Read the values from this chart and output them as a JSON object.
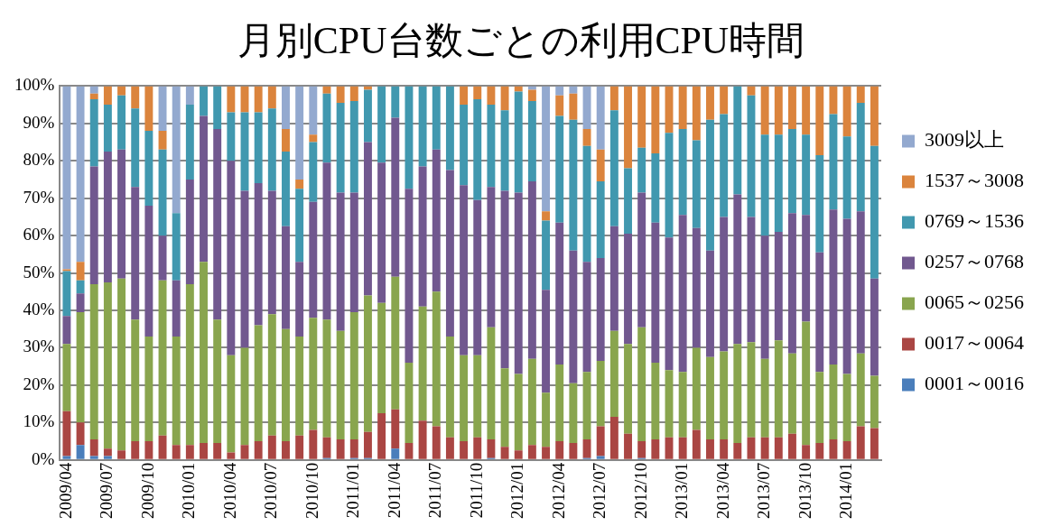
{
  "chart_data": {
    "type": "bar",
    "title": "月別CPU台数ごとの利用CPU時間",
    "stacked": true,
    "categories": [
      "2009/04",
      null,
      null,
      "2009/07",
      null,
      null,
      "2009/10",
      null,
      null,
      "2010/01",
      null,
      null,
      "2010/04",
      null,
      null,
      "2010/07",
      null,
      null,
      "2010/10",
      null,
      null,
      "2011/01",
      null,
      null,
      "2011/04",
      null,
      null,
      "2011/07",
      null,
      null,
      "2011/10",
      null,
      null,
      "2012/01",
      null,
      null,
      "2012/04",
      null,
      null,
      "2012/07",
      null,
      null,
      "2012/10",
      null,
      null,
      "2013/01",
      null,
      null,
      "2013/04",
      null,
      null,
      "2013/07",
      null,
      null,
      "2013/10",
      null,
      null,
      "2014/01",
      null,
      null
    ],
    "ylim": [
      0,
      100
    ],
    "yticks": [
      {
        "value": 0,
        "label": "0%"
      },
      {
        "value": 10,
        "label": "10%"
      },
      {
        "value": 20,
        "label": "20%"
      },
      {
        "value": 30,
        "label": "30%"
      },
      {
        "value": 40,
        "label": "40%"
      },
      {
        "value": 50,
        "label": "50%"
      },
      {
        "value": 60,
        "label": "60%"
      },
      {
        "value": 70,
        "label": "70%"
      },
      {
        "value": 80,
        "label": "80%"
      },
      {
        "value": 90,
        "label": "90%"
      },
      {
        "value": 100,
        "label": "100%"
      }
    ],
    "grid": "y",
    "legend": "right",
    "series": [
      {
        "name": "0001～0016",
        "color": "#4a7ebb",
        "values": [
          1,
          4,
          1,
          1,
          0,
          0,
          0,
          0,
          0,
          0,
          0,
          0,
          0,
          0,
          0,
          0,
          0,
          0,
          0,
          0.5,
          0,
          0.5,
          0.5,
          0,
          3,
          0,
          0,
          0,
          0,
          0,
          0,
          0.5,
          0,
          0,
          0,
          0,
          0,
          0,
          0.5,
          1,
          0,
          0,
          0.5,
          0,
          0,
          0,
          0,
          0,
          0,
          0,
          0,
          0,
          0,
          0,
          0,
          0,
          0,
          0,
          0,
          0
        ]
      },
      {
        "name": "0017～0064",
        "color": "#aa4643",
        "values": [
          12,
          6,
          4.5,
          2,
          2.5,
          5,
          5,
          6.5,
          4,
          4,
          4.5,
          4.5,
          2,
          4,
          5,
          6.5,
          5,
          6.5,
          8,
          5.5,
          5.5,
          5,
          7,
          12.5,
          10.5,
          4.5,
          10.5,
          9,
          6,
          5,
          6,
          5,
          3.5,
          2.5,
          4,
          3.5,
          5,
          4.5,
          5,
          8,
          11.5,
          7,
          4.5,
          5.5,
          6,
          6,
          8,
          5.5,
          5.5,
          4.5,
          6,
          6,
          6,
          7,
          4,
          4.5,
          5.5,
          5,
          9,
          8.5
        ]
      },
      {
        "name": "0065～0256",
        "color": "#89a54e",
        "values": [
          18,
          29.5,
          41.5,
          44.5,
          46,
          32.5,
          28,
          41.5,
          29,
          43,
          48.5,
          33,
          26,
          26,
          31,
          32.5,
          30,
          26.5,
          30,
          31.5,
          29,
          34,
          36.5,
          29.5,
          35.5,
          21.5,
          30.5,
          36,
          27,
          23,
          22,
          30,
          21,
          20.5,
          23,
          14.5,
          20.5,
          16,
          18,
          17.5,
          23,
          24,
          30.5,
          20.5,
          18,
          17.5,
          22,
          22,
          23.5,
          26.5,
          25.5,
          21,
          26,
          21.5,
          33,
          19,
          20,
          18,
          19.5,
          14
        ]
      },
      {
        "name": "0257～0768",
        "color": "#71588f",
        "values": [
          7.5,
          5,
          31.5,
          35,
          34.5,
          35.5,
          35,
          12,
          15,
          28,
          39,
          51,
          52,
          42,
          38,
          33,
          27.5,
          20,
          31,
          42,
          37,
          32,
          41,
          37.5,
          42.5,
          46.5,
          37.5,
          38,
          44.5,
          45.5,
          41.5,
          37.5,
          47.5,
          48.5,
          47.5,
          27.5,
          38,
          35.5,
          29.5,
          27.5,
          28,
          29.5,
          36,
          37.5,
          35.5,
          42,
          32,
          28.5,
          36,
          40,
          33.5,
          33,
          29,
          37.5,
          28.5,
          32,
          41.5,
          41.5,
          38,
          26
        ]
      },
      {
        "name": "0769～1536",
        "color": "#4198af",
        "values": [
          12,
          3.5,
          18,
          12.5,
          14.5,
          21,
          20,
          23,
          18,
          20,
          8,
          11.5,
          13,
          21,
          19,
          22,
          20,
          19.5,
          16,
          18.5,
          24,
          24.5,
          14,
          20.5,
          8.5,
          27.5,
          21.5,
          17,
          22.5,
          21.5,
          27,
          22,
          21.5,
          27,
          21.5,
          18.5,
          28.5,
          35,
          31,
          20.5,
          31,
          17.5,
          12,
          18.5,
          28,
          23,
          23.5,
          35,
          27.5,
          29,
          32.5,
          27,
          26,
          22.5,
          21.5,
          26,
          25.5,
          22,
          29,
          35.5
        ]
      },
      {
        "name": "1537～3008",
        "color": "#db843d",
        "values": [
          0.5,
          5,
          1.5,
          5,
          2.5,
          6,
          12,
          5,
          0,
          0,
          0,
          0,
          7,
          7,
          7,
          6,
          6,
          2.5,
          2,
          2,
          4.5,
          4,
          1,
          0,
          0,
          0,
          0,
          0,
          0,
          5,
          3.5,
          5,
          6.5,
          1.5,
          3,
          2.5,
          5.5,
          7,
          4.5,
          8.5,
          6.5,
          22,
          16.5,
          18,
          12.5,
          11.5,
          14.5,
          9,
          7.5,
          0,
          2.5,
          13,
          13,
          11.5,
          13,
          18.5,
          7.5,
          13.5,
          4.5,
          16
        ]
      },
      {
        "name": "3009以上",
        "color": "#93a9cf",
        "values": [
          49,
          47,
          2,
          0,
          0,
          0,
          0,
          12,
          34,
          5,
          0,
          0,
          0,
          0,
          0,
          0,
          11.5,
          25,
          13,
          0,
          0,
          0,
          0,
          0,
          0,
          0,
          0,
          0,
          0,
          0,
          0,
          0,
          0,
          0,
          1,
          33.5,
          2.5,
          2,
          11.5,
          17,
          0,
          0,
          0,
          0,
          0,
          0,
          0,
          0,
          0,
          0,
          0,
          0,
          0,
          0,
          0,
          0,
          0,
          0,
          0,
          0
        ]
      }
    ]
  }
}
